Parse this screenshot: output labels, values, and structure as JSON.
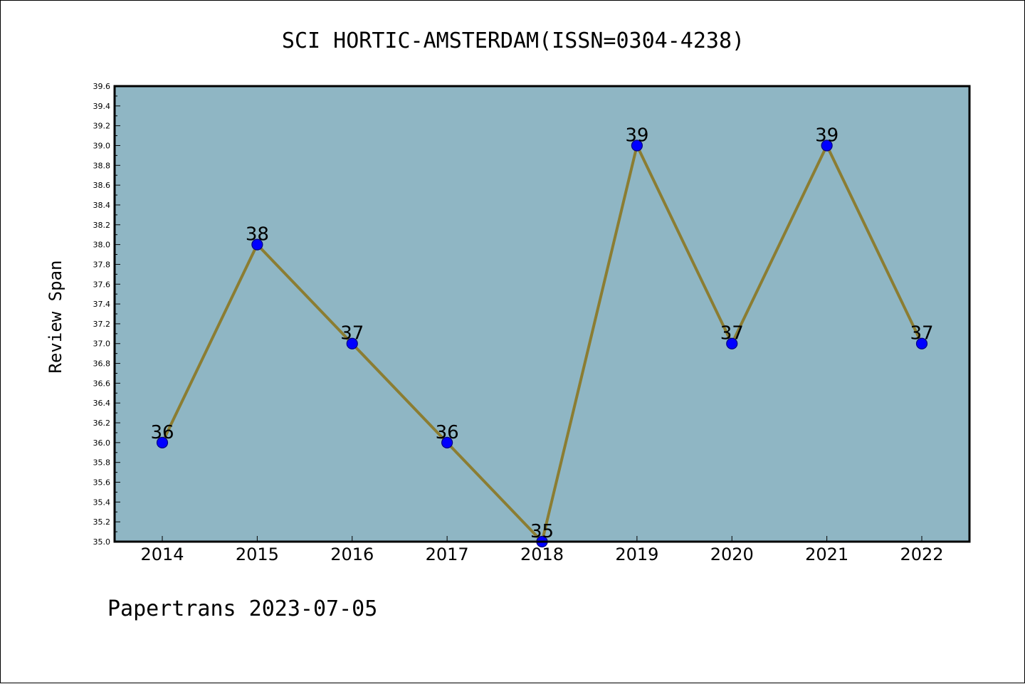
{
  "chart_data": {
    "type": "line",
    "title": "SCI HORTIC-AMSTERDAM(ISSN=0304-4238)",
    "xlabel": "",
    "ylabel": "Review Span",
    "categories": [
      "2014",
      "2015",
      "2016",
      "2017",
      "2018",
      "2019",
      "2020",
      "2021",
      "2022"
    ],
    "values": [
      36,
      38,
      37,
      36,
      35,
      39,
      37,
      39,
      37
    ],
    "data_labels": [
      "36",
      "38",
      "37",
      "36",
      "35",
      "39",
      "37",
      "39",
      "37"
    ],
    "ylim": [
      35.0,
      39.6
    ],
    "ytick_step": 0.2,
    "grid": false,
    "legend": "none",
    "colors": {
      "plot_background": "#8fb6c4",
      "line": "#8b7d32",
      "marker_fill": "#0000ff",
      "marker_edge": "#000080"
    }
  },
  "footer": {
    "text": "Papertrans 2023-07-05"
  }
}
